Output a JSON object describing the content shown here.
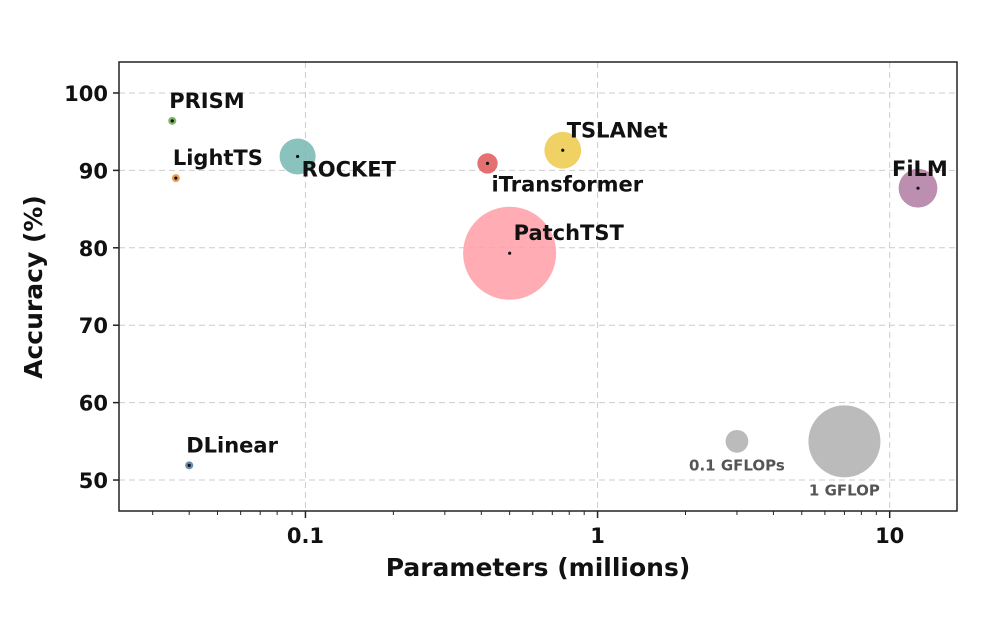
{
  "chart_data": {
    "type": "scatter",
    "xlabel": "Parameters (millions)",
    "ylabel": "Accuracy (%)",
    "x_scale": "log",
    "xlim": [
      0.023,
      17
    ],
    "ylim": [
      46,
      104
    ],
    "x_ticks": [
      {
        "value": 0.1,
        "label": "0.1"
      },
      {
        "value": 1,
        "label": "1"
      },
      {
        "value": 10,
        "label": "10"
      }
    ],
    "y_ticks": [
      50,
      60,
      70,
      80,
      90,
      100
    ],
    "grid": true,
    "points": [
      {
        "name": "PRISM",
        "x": 0.035,
        "y": 96.4,
        "gflops": 0.005,
        "color": "#6aa84f"
      },
      {
        "name": "LightTS",
        "x": 0.036,
        "y": 89.0,
        "gflops": 0.004,
        "color": "#e69138"
      },
      {
        "name": "ROCKET",
        "x": 0.094,
        "y": 91.8,
        "gflops": 0.25,
        "color": "#76b7b2"
      },
      {
        "name": "iTransformer",
        "x": 0.42,
        "y": 90.9,
        "gflops": 0.08,
        "color": "#e15759"
      },
      {
        "name": "TSLANet",
        "x": 0.76,
        "y": 92.6,
        "gflops": 0.26,
        "color": "#edc948"
      },
      {
        "name": "FiLM",
        "x": 12.5,
        "y": 87.7,
        "gflops": 0.29,
        "color": "#b07aa1"
      },
      {
        "name": "PatchTST",
        "x": 0.5,
        "y": 79.3,
        "gflops": 1.67,
        "color": "#ff9da7"
      },
      {
        "name": "DLinear",
        "x": 0.04,
        "y": 51.9,
        "gflops": 0.004,
        "color": "#4e79a7"
      }
    ],
    "size_legend": [
      {
        "label": "0.1 GFLOPs",
        "x": 3.0,
        "y": 55.0,
        "gflops": 0.1
      },
      {
        "label": "1 GFLOP",
        "x": 7.0,
        "y": 55.0,
        "gflops": 1.0
      }
    ],
    "size_legend_color": "#aaaaaa"
  }
}
